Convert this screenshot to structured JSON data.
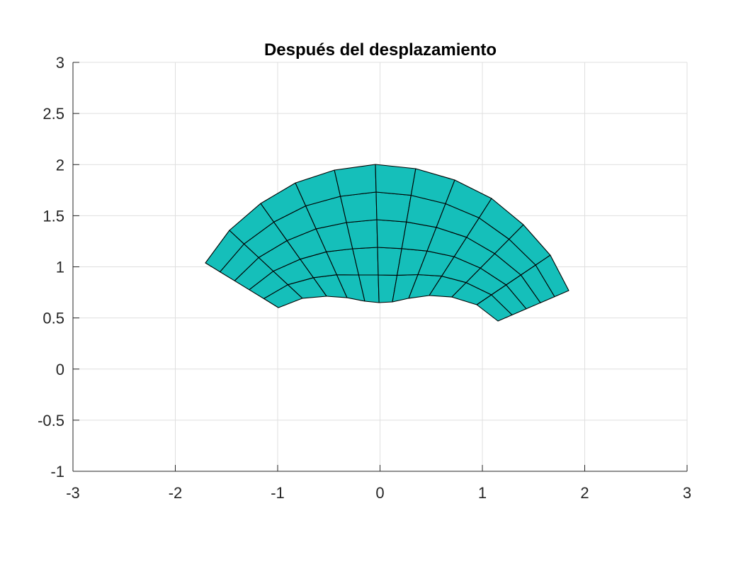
{
  "chart_data": {
    "type": "mesh",
    "title": "Después del desplazamiento",
    "xlabel": "",
    "ylabel": "",
    "xlim": [
      -3,
      3
    ],
    "ylim": [
      -1,
      3
    ],
    "xticks": [
      "-3",
      "-2",
      "-1",
      "0",
      "1",
      "2",
      "3"
    ],
    "yticks": [
      "-1",
      "-0.5",
      "0",
      "0.5",
      "1",
      "1.5",
      "2",
      "2.5",
      "3"
    ],
    "grid": true,
    "face_color": "#15bfba",
    "edge_color": "#000000",
    "rings": 6,
    "outer_boundary": [
      [
        -1.706,
        1.038
      ],
      [
        -1.471,
        1.357
      ],
      [
        -1.166,
        1.62
      ],
      [
        -0.827,
        1.821
      ],
      [
        -0.446,
        1.946
      ],
      [
        -0.045,
        2.002
      ],
      [
        0.349,
        1.96
      ],
      [
        0.73,
        1.849
      ],
      [
        1.09,
        1.669
      ],
      [
        1.401,
        1.412
      ],
      [
        1.664,
        1.114
      ],
      [
        1.844,
        0.768
      ]
    ],
    "inner_boundary": [
      [
        -0.993,
        0.601
      ],
      [
        -0.758,
        0.692
      ],
      [
        -0.522,
        0.712
      ],
      [
        -0.322,
        0.698
      ],
      [
        -0.149,
        0.664
      ],
      [
        -0.01,
        0.65
      ],
      [
        0.121,
        0.657
      ],
      [
        0.28,
        0.692
      ],
      [
        0.481,
        0.719
      ],
      [
        0.702,
        0.705
      ],
      [
        0.945,
        0.629
      ],
      [
        1.152,
        0.47
      ]
    ]
  }
}
